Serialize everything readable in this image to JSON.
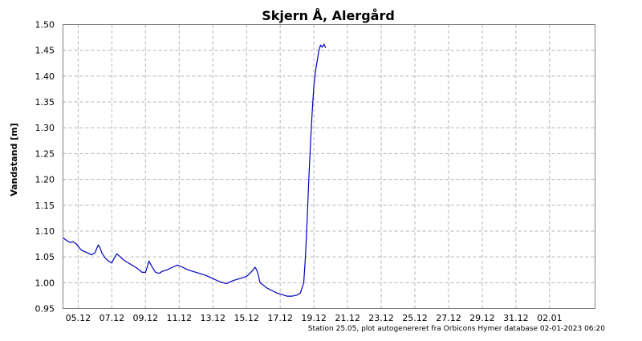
{
  "chart_data": {
    "type": "line",
    "title": "Skjern Å, Alergård",
    "xlabel": "",
    "ylabel": "Vandstand [m]",
    "footer": "Station 25.05, plot autogenereret fra Orbicons Hymer database 02-01-2023 06:20",
    "xlim": [
      4.1,
      35.7
    ],
    "ylim": [
      0.95,
      1.5
    ],
    "grid": true,
    "line_color": "#0000c0",
    "x_ticks": [
      {
        "x": 5,
        "label": "05.12"
      },
      {
        "x": 7,
        "label": "07.12"
      },
      {
        "x": 9,
        "label": "09.12"
      },
      {
        "x": 11,
        "label": "11.12"
      },
      {
        "x": 13,
        "label": "13.12"
      },
      {
        "x": 15,
        "label": "15.12"
      },
      {
        "x": 17,
        "label": "17.12"
      },
      {
        "x": 19,
        "label": "19.12"
      },
      {
        "x": 21,
        "label": "21.12"
      },
      {
        "x": 23,
        "label": "23.12"
      },
      {
        "x": 25,
        "label": "25.12"
      },
      {
        "x": 27,
        "label": "27.12"
      },
      {
        "x": 29,
        "label": "29.12"
      },
      {
        "x": 31,
        "label": "31.12"
      },
      {
        "x": 33,
        "label": "02.01"
      }
    ],
    "y_ticks": [
      {
        "y": 0.95,
        "label": "0.95"
      },
      {
        "y": 1.0,
        "label": "1.00"
      },
      {
        "y": 1.05,
        "label": "1.05"
      },
      {
        "y": 1.1,
        "label": "1.10"
      },
      {
        "y": 1.15,
        "label": "1.15"
      },
      {
        "y": 1.2,
        "label": "1.20"
      },
      {
        "y": 1.25,
        "label": "1.25"
      },
      {
        "y": 1.3,
        "label": "1.30"
      },
      {
        "y": 1.35,
        "label": "1.35"
      },
      {
        "y": 1.4,
        "label": "1.40"
      },
      {
        "y": 1.45,
        "label": "1.45"
      },
      {
        "y": 1.5,
        "label": "1.50"
      }
    ],
    "x": [
      4.1,
      4.3,
      4.5,
      4.7,
      4.9,
      5.0,
      5.2,
      5.4,
      5.6,
      5.8,
      6.0,
      6.1,
      6.2,
      6.3,
      6.4,
      6.6,
      6.8,
      7.0,
      7.1,
      7.3,
      7.5,
      7.7,
      7.9,
      8.2,
      8.5,
      8.8,
      9.0,
      9.1,
      9.2,
      9.3,
      9.4,
      9.6,
      9.8,
      10.0,
      10.3,
      10.6,
      10.9,
      11.2,
      11.5,
      11.8,
      12.2,
      12.6,
      13.0,
      13.4,
      13.8,
      14.2,
      14.6,
      15.0,
      15.2,
      15.4,
      15.5,
      15.6,
      15.7,
      15.8,
      16.0,
      16.2,
      16.5,
      16.8,
      17.1,
      17.4,
      17.7,
      18.0,
      18.2,
      18.4,
      18.5,
      18.6,
      18.7,
      18.8,
      18.9,
      19.0,
      19.1,
      19.2,
      19.3,
      19.4,
      19.5,
      19.6,
      19.7
    ],
    "y": [
      1.087,
      1.082,
      1.078,
      1.079,
      1.075,
      1.07,
      1.063,
      1.06,
      1.057,
      1.054,
      1.058,
      1.066,
      1.073,
      1.068,
      1.058,
      1.048,
      1.042,
      1.038,
      1.045,
      1.056,
      1.05,
      1.044,
      1.04,
      1.034,
      1.028,
      1.02,
      1.02,
      1.03,
      1.042,
      1.036,
      1.03,
      1.02,
      1.018,
      1.022,
      1.025,
      1.03,
      1.034,
      1.03,
      1.025,
      1.022,
      1.018,
      1.014,
      1.008,
      1.002,
      0.998,
      1.004,
      1.008,
      1.012,
      1.018,
      1.025,
      1.03,
      1.025,
      1.015,
      1.0,
      0.995,
      0.99,
      0.985,
      0.98,
      0.977,
      0.974,
      0.974,
      0.976,
      0.98,
      1.0,
      1.05,
      1.12,
      1.2,
      1.27,
      1.33,
      1.38,
      1.41,
      1.43,
      1.45,
      1.46,
      1.456,
      1.462,
      1.455
    ]
  }
}
